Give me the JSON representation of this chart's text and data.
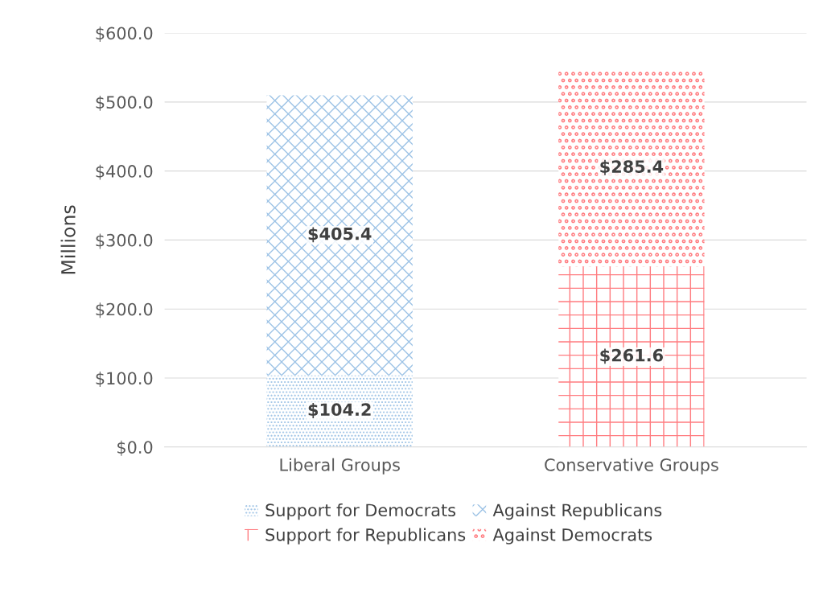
{
  "chart_data": {
    "type": "bar",
    "stacked": true,
    "ylabel": "Millions",
    "categories": [
      "Liberal Groups",
      "Conservative Groups"
    ],
    "series": [
      {
        "name": "Support for Democrats",
        "color": "#9dc3e6",
        "values": [
          104.2,
          null
        ],
        "value_labels": [
          "$104.2",
          null
        ]
      },
      {
        "name": "Against Republicans",
        "color": "#9dc3e6",
        "values": [
          405.4,
          null
        ],
        "value_labels": [
          "$405.4",
          null
        ]
      },
      {
        "name": "Support for Republicans",
        "color": "#ff7c80",
        "values": [
          null,
          261.6
        ],
        "value_labels": [
          null,
          "$261.6"
        ]
      },
      {
        "name": "Against Democrats",
        "color": "#ff7c80",
        "values": [
          null,
          285.4
        ],
        "value_labels": [
          null,
          "$285.4"
        ]
      }
    ],
    "ylim": [
      0,
      600
    ],
    "yticks": [
      {
        "value": 0,
        "label": "$0.0"
      },
      {
        "value": 100,
        "label": "$100.0"
      },
      {
        "value": 200,
        "label": "$200.0"
      },
      {
        "value": 300,
        "label": "$300.0"
      },
      {
        "value": 400,
        "label": "$400.0"
      },
      {
        "value": 500,
        "label": "$500.0"
      },
      {
        "value": 600,
        "label": "$600.0"
      }
    ],
    "grid": "y",
    "legend": "bottom"
  }
}
